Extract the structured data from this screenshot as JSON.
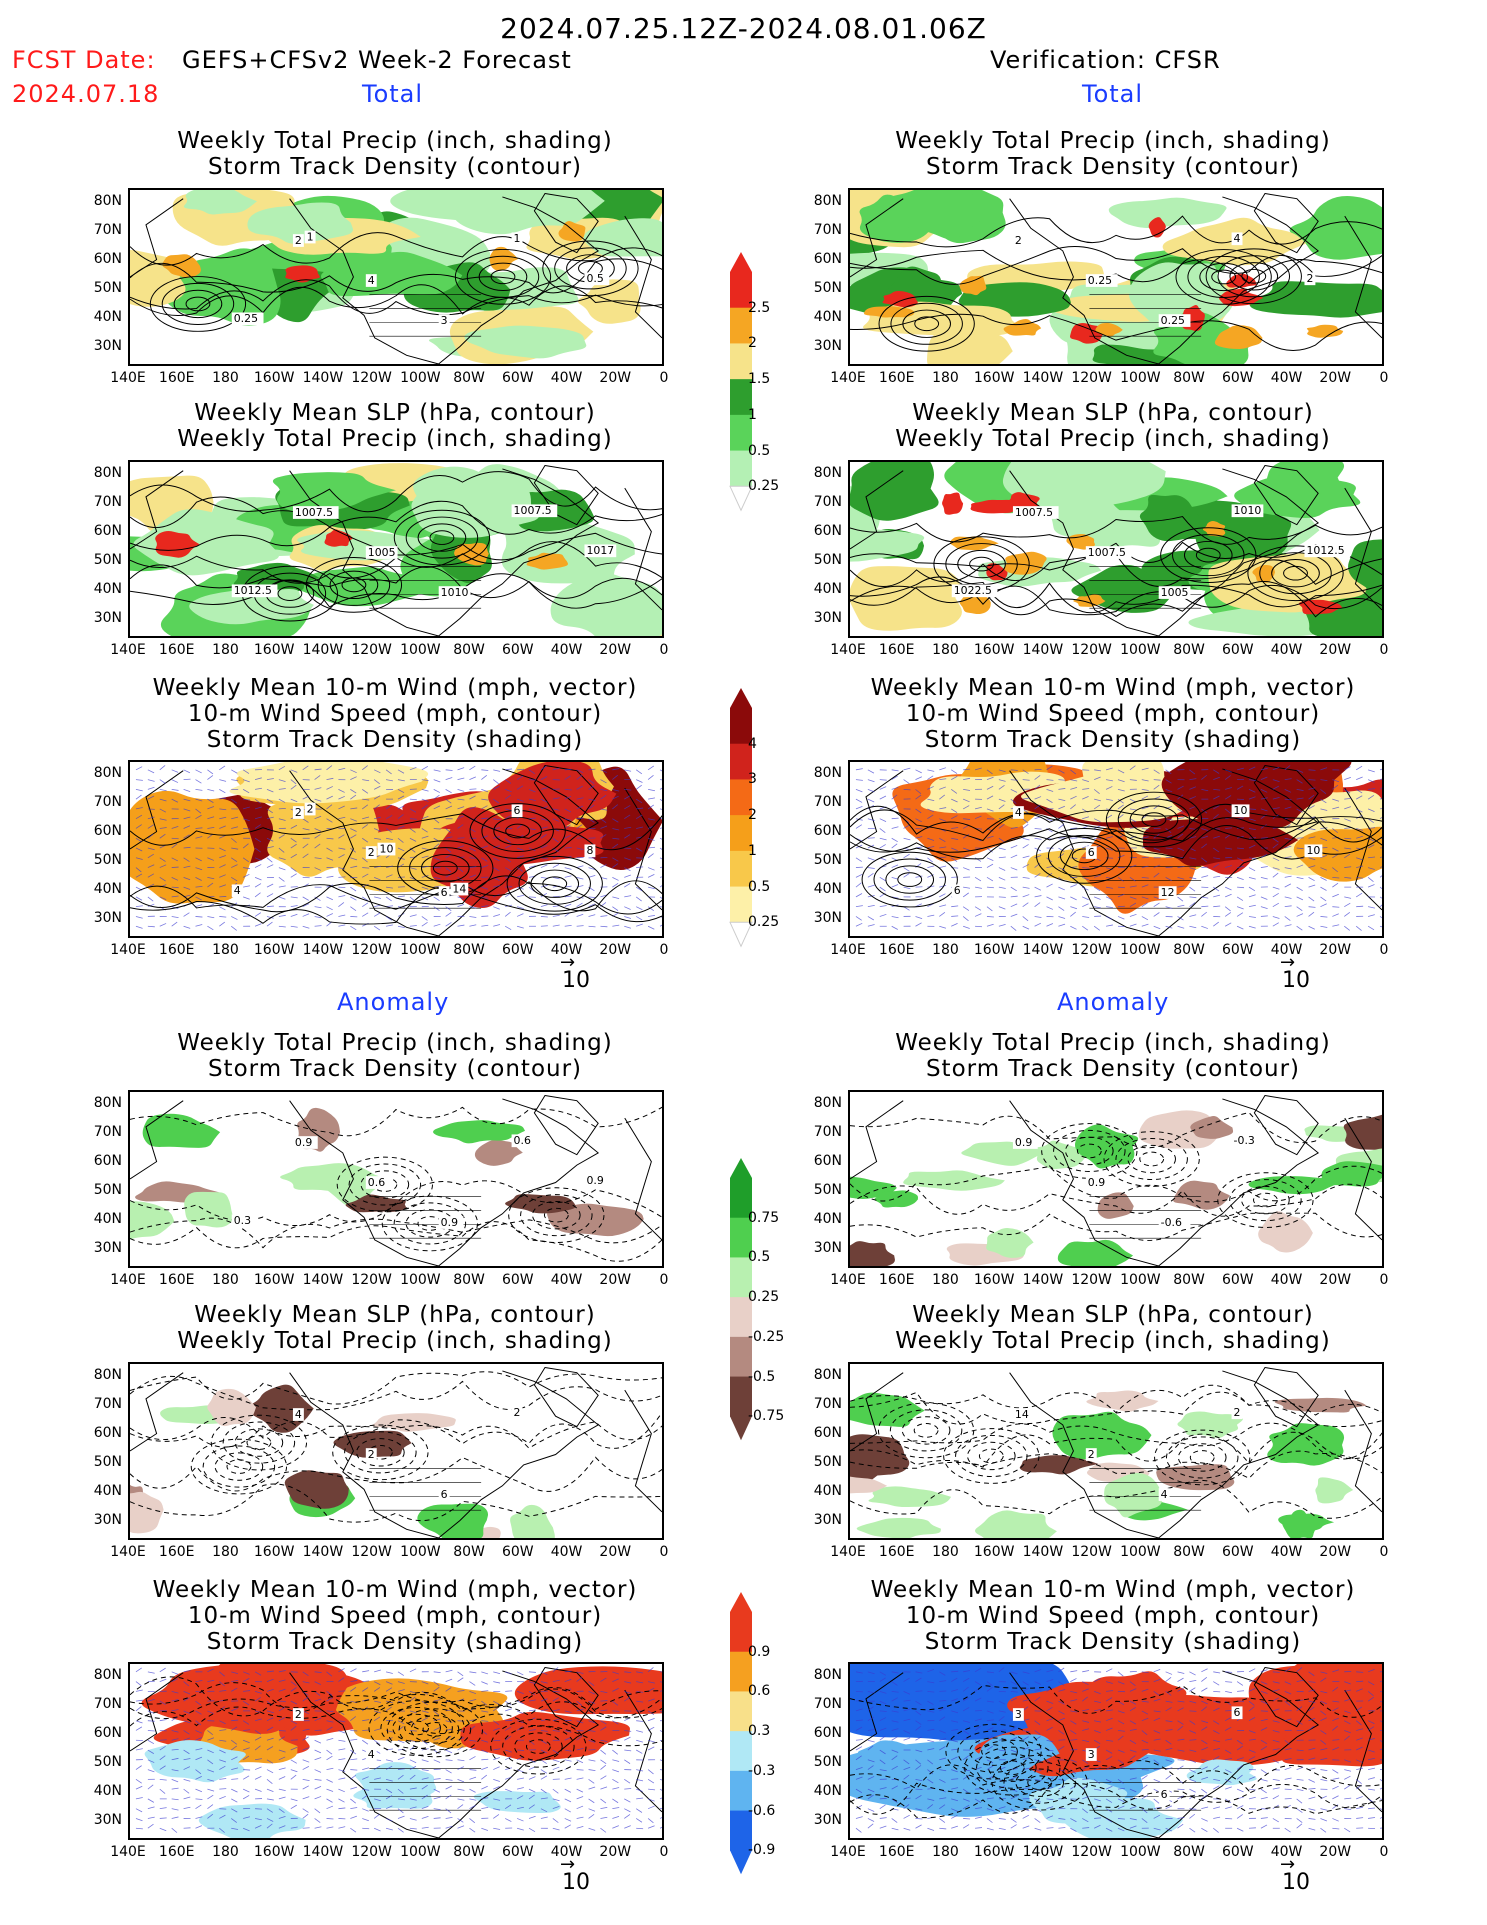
{
  "header": {
    "title": "2024.07.25.12Z-2024.08.01.06Z",
    "fcst_prefix": "FCST Date:",
    "fcst_model": "GEFS+CFSv2 Week-2 Forecast",
    "fcst_date": "2024.07.18",
    "verification": "Verification: CFSR",
    "total_label": "Total",
    "anomaly_label": "Anomaly"
  },
  "panels": {
    "precip_track": [
      "Weekly Total Precip (inch, shading)",
      "Storm Track Density (contour)"
    ],
    "slp_precip": [
      "Weekly Mean SLP (hPa, contour)",
      "Weekly Total Precip (inch, shading)"
    ],
    "wind_track": [
      "Weekly Mean 10-m Wind (mph, vector)",
      "10-m Wind Speed (mph, contour)",
      "Storm Track Density (shading)"
    ]
  },
  "axes": {
    "lat_labels": [
      "80N",
      "70N",
      "60N",
      "50N",
      "40N",
      "30N"
    ],
    "lon_labels": [
      "140E",
      "160E",
      "180",
      "160W",
      "140W",
      "120W",
      "100W",
      "80W",
      "60W",
      "40W",
      "20W",
      "0"
    ]
  },
  "vector_ref": "10",
  "colorbars": {
    "precip_total": {
      "labels": [
        "2.5",
        "2",
        "1.5",
        "1",
        "0.5",
        "0.25"
      ],
      "colors": [
        "#e8281e",
        "#f5a623",
        "#f6e38a",
        "#2e9e2e",
        "#5ad35a",
        "#b4f0b4"
      ]
    },
    "track_total": {
      "labels": [
        "4",
        "3",
        "2",
        "1",
        "0.5",
        "0.25"
      ],
      "colors": [
        "#8b0a0a",
        "#d0231c",
        "#f46a16",
        "#f59f1a",
        "#f8c84a",
        "#fdf0a8"
      ]
    },
    "precip_anom": {
      "labels": [
        "0.75",
        "0.5",
        "0.25",
        "-0.25",
        "-0.5",
        "-0.75"
      ],
      "colors": [
        "#1f9e2a",
        "#4fcf4f",
        "#b8f0b0",
        "#e8d0c8",
        "#b48a80",
        "#6e4038"
      ]
    },
    "track_anom": {
      "labels": [
        "0.9",
        "0.6",
        "0.3",
        "-0.3",
        "-0.6",
        "-0.9"
      ],
      "colors": [
        "#e83a1e",
        "#f5a020",
        "#f8e08a",
        "#b0e8f5",
        "#5fb4f0",
        "#1e64e8"
      ]
    }
  },
  "contour_labels": {
    "fc_precip": [
      "2",
      "4",
      "3",
      "1",
      "0.5",
      "0.25",
      "1"
    ],
    "fc_slp": [
      "1007.5",
      "1005",
      "1010",
      "1007.5",
      "1017",
      "1012.5"
    ],
    "fc_wind": [
      "2",
      "2",
      "6",
      "6",
      "8",
      "4",
      "2",
      "10",
      "14"
    ],
    "vr_precip": [
      "2",
      "0.25",
      "0.25",
      "4",
      "2"
    ],
    "vr_slp": [
      "1007.5",
      "1007.5",
      "1005",
      "1010",
      "1012.5",
      "1022.5"
    ],
    "vr_wind": [
      "4",
      "6",
      "12",
      "10",
      "10",
      "6"
    ],
    "fa_precip": [
      "0.9",
      "0.6",
      "0.9",
      "0.6",
      "0.9",
      "0.3"
    ],
    "fa_slp": [
      "4",
      "2",
      "6",
      "2"
    ],
    "fa_wind": [
      "2",
      "4"
    ],
    "va_precip": [
      "0.9",
      "0.9",
      "-0.6",
      "-0.3"
    ],
    "va_slp": [
      "14",
      "2",
      "4",
      "2"
    ],
    "va_wind": [
      "3",
      "3",
      "6",
      "6"
    ]
  }
}
